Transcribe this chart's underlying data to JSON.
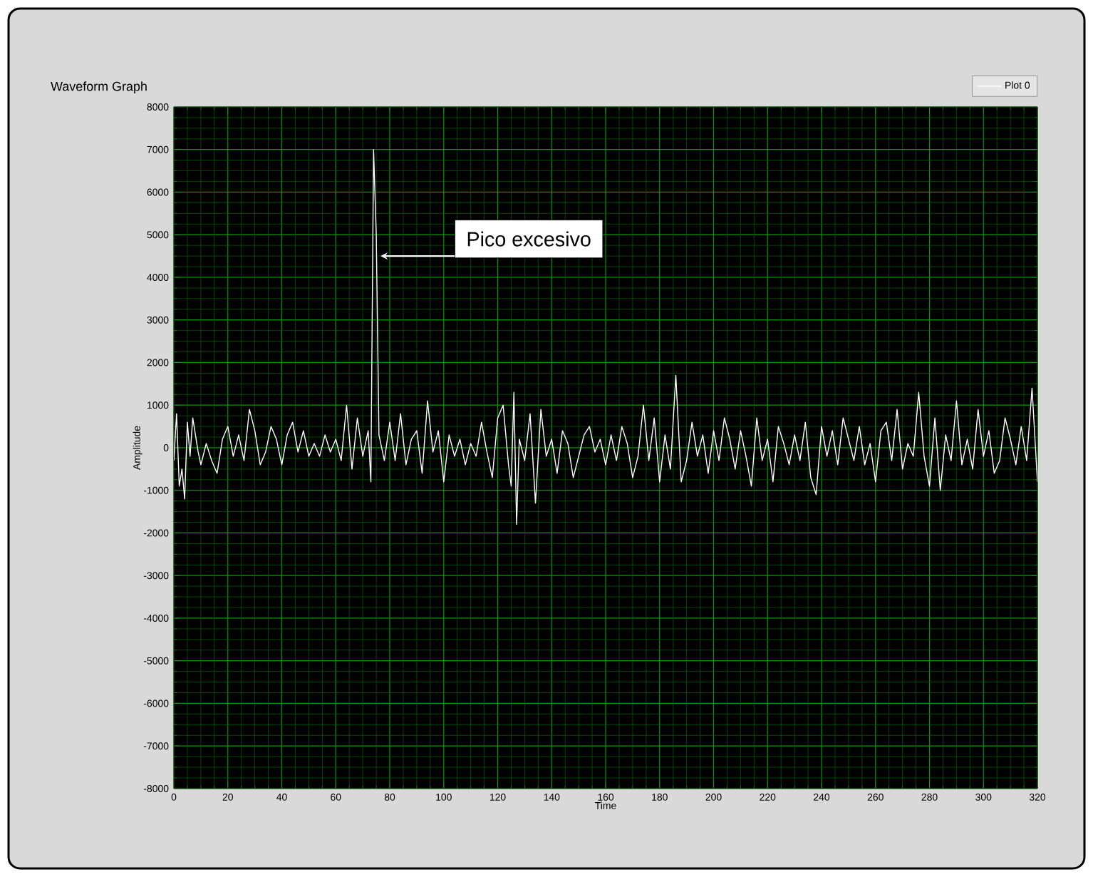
{
  "chart_data": {
    "type": "line",
    "title": "Waveform Graph",
    "xlabel": "Time",
    "ylabel": "Amplitude",
    "xlim": [
      0,
      320
    ],
    "ylim": [
      -8000,
      8000
    ],
    "xticks": [
      0,
      {
        "value": 5,
        "label": null
      },
      {
        "value": 10,
        "label": null
      },
      {
        "value": 15,
        "label": null
      },
      20,
      {
        "value": 25,
        "label": null
      },
      {
        "value": 30,
        "label": null
      },
      {
        "value": 35,
        "label": null
      },
      40,
      {
        "value": 45,
        "label": null
      },
      {
        "value": 50,
        "label": null
      },
      {
        "value": 55,
        "label": null
      },
      60,
      {
        "value": 65,
        "label": null
      },
      {
        "value": 70,
        "label": null
      },
      {
        "value": 75,
        "label": null
      },
      80,
      {
        "value": 85,
        "label": null
      },
      {
        "value": 90,
        "label": null
      },
      {
        "value": 95,
        "label": null
      },
      100,
      {
        "value": 105,
        "label": null
      },
      {
        "value": 110,
        "label": null
      },
      {
        "value": 115,
        "label": null
      },
      120,
      {
        "value": 125,
        "label": null
      },
      {
        "value": 130,
        "label": null
      },
      {
        "value": 135,
        "label": null
      },
      140,
      {
        "value": 145,
        "label": null
      },
      {
        "value": 150,
        "label": null
      },
      {
        "value": 155,
        "label": null
      },
      160,
      {
        "value": 165,
        "label": null
      },
      {
        "value": 170,
        "label": null
      },
      {
        "value": 175,
        "label": null
      },
      180,
      {
        "value": 185,
        "label": null
      },
      {
        "value": 190,
        "label": null
      },
      {
        "value": 195,
        "label": null
      },
      200,
      {
        "value": 205,
        "label": null
      },
      {
        "value": 210,
        "label": null
      },
      {
        "value": 215,
        "label": null
      },
      220,
      {
        "value": 225,
        "label": null
      },
      {
        "value": 230,
        "label": null
      },
      {
        "value": 235,
        "label": null
      },
      240,
      {
        "value": 245,
        "label": null
      },
      {
        "value": 250,
        "label": null
      },
      {
        "value": 255,
        "label": null
      },
      260,
      {
        "value": 265,
        "label": null
      },
      {
        "value": 270,
        "label": null
      },
      {
        "value": 275,
        "label": null
      },
      280,
      {
        "value": 285,
        "label": null
      },
      {
        "value": 290,
        "label": null
      },
      {
        "value": 295,
        "label": null
      },
      300,
      {
        "value": 305,
        "label": null
      },
      {
        "value": 310,
        "label": null
      },
      {
        "value": 315,
        "label": null
      },
      320
    ],
    "yticks": [
      -8000,
      {
        "value": -7750,
        "label": null
      },
      {
        "value": -7500,
        "label": null
      },
      {
        "value": -7250,
        "label": null
      },
      -7000,
      {
        "value": -6750,
        "label": null
      },
      {
        "value": -6500,
        "label": null
      },
      {
        "value": -6250,
        "label": null
      },
      -6000,
      {
        "value": -5750,
        "label": null
      },
      {
        "value": -5500,
        "label": null
      },
      {
        "value": -5250,
        "label": null
      },
      -5000,
      {
        "value": -4750,
        "label": null
      },
      {
        "value": -4500,
        "label": null
      },
      {
        "value": -4250,
        "label": null
      },
      -4000,
      {
        "value": -3750,
        "label": null
      },
      {
        "value": -3500,
        "label": null
      },
      {
        "value": -3250,
        "label": null
      },
      -3000,
      {
        "value": -2750,
        "label": null
      },
      {
        "value": -2500,
        "label": null
      },
      {
        "value": -2250,
        "label": null
      },
      -2000,
      {
        "value": -1750,
        "label": null
      },
      {
        "value": -1500,
        "label": null
      },
      {
        "value": -1250,
        "label": null
      },
      -1000,
      {
        "value": -750,
        "label": null
      },
      {
        "value": -500,
        "label": null
      },
      {
        "value": -250,
        "label": null
      },
      0,
      {
        "value": 250,
        "label": null
      },
      {
        "value": 500,
        "label": null
      },
      {
        "value": 750,
        "label": null
      },
      1000,
      {
        "value": 1250,
        "label": null
      },
      {
        "value": 1500,
        "label": null
      },
      {
        "value": 1750,
        "label": null
      },
      2000,
      {
        "value": 2250,
        "label": null
      },
      {
        "value": 2500,
        "label": null
      },
      {
        "value": 2750,
        "label": null
      },
      3000,
      {
        "value": 3250,
        "label": null
      },
      {
        "value": 3500,
        "label": null
      },
      {
        "value": 3750,
        "label": null
      },
      4000,
      {
        "value": 4250,
        "label": null
      },
      {
        "value": 4500,
        "label": null
      },
      {
        "value": 4750,
        "label": null
      },
      5000,
      {
        "value": 5250,
        "label": null
      },
      {
        "value": 5500,
        "label": null
      },
      {
        "value": 5750,
        "label": null
      },
      6000,
      {
        "value": 6250,
        "label": null
      },
      {
        "value": 6500,
        "label": null
      },
      {
        "value": 6750,
        "label": null
      },
      7000,
      {
        "value": 7250,
        "label": null
      },
      {
        "value": 7500,
        "label": null
      },
      {
        "value": 7750,
        "label": null
      },
      8000
    ],
    "grid": true,
    "legend": "top right",
    "annotations": [
      {
        "text": "Pico excesivo",
        "x": 75,
        "y": 4500
      }
    ],
    "series": [
      {
        "name": "Plot 0",
        "color": "#ffffff",
        "x": [
          0,
          1,
          2,
          3,
          4,
          5,
          6,
          7,
          8,
          9,
          10,
          12,
          14,
          16,
          18,
          20,
          22,
          24,
          26,
          28,
          30,
          32,
          34,
          36,
          38,
          40,
          42,
          44,
          46,
          48,
          50,
          52,
          54,
          56,
          58,
          60,
          62,
          64,
          66,
          68,
          70,
          72,
          73,
          74,
          75,
          76,
          78,
          80,
          82,
          84,
          86,
          88,
          90,
          92,
          94,
          96,
          98,
          100,
          102,
          104,
          106,
          108,
          110,
          112,
          114,
          116,
          118,
          120,
          122,
          124,
          125,
          126,
          127,
          128,
          130,
          132,
          134,
          136,
          138,
          140,
          142,
          144,
          146,
          148,
          150,
          152,
          154,
          156,
          158,
          160,
          162,
          164,
          166,
          168,
          170,
          172,
          174,
          176,
          178,
          180,
          182,
          184,
          186,
          188,
          190,
          192,
          194,
          196,
          198,
          200,
          202,
          204,
          206,
          208,
          210,
          212,
          214,
          216,
          218,
          220,
          222,
          224,
          226,
          228,
          230,
          232,
          234,
          236,
          238,
          240,
          242,
          244,
          246,
          248,
          250,
          252,
          254,
          256,
          258,
          260,
          262,
          264,
          266,
          268,
          270,
          272,
          274,
          276,
          278,
          280,
          282,
          284,
          286,
          288,
          290,
          292,
          294,
          296,
          298,
          300,
          302,
          304,
          306,
          308,
          310,
          312,
          314,
          316,
          318,
          320
        ],
        "values": [
          -300,
          800,
          -900,
          -500,
          -1200,
          600,
          -200,
          700,
          300,
          -100,
          -400,
          100,
          -300,
          -600,
          200,
          500,
          -200,
          300,
          -300,
          900,
          400,
          -400,
          -100,
          500,
          200,
          -400,
          300,
          600,
          -100,
          400,
          -200,
          100,
          -200,
          300,
          -100,
          200,
          -300,
          1000,
          -500,
          700,
          -200,
          400,
          -800,
          7000,
          5000,
          300,
          -300,
          600,
          -300,
          800,
          -400,
          200,
          400,
          -600,
          1100,
          -100,
          400,
          -800,
          300,
          -200,
          200,
          -400,
          100,
          -200,
          600,
          -100,
          -700,
          700,
          1000,
          -400,
          -900,
          1300,
          -1800,
          200,
          -300,
          800,
          -1300,
          900,
          -200,
          200,
          -600,
          400,
          100,
          -700,
          -200,
          300,
          500,
          -100,
          200,
          -400,
          300,
          -300,
          500,
          100,
          -700,
          -200,
          1000,
          -300,
          700,
          -800,
          300,
          -500,
          1700,
          -800,
          -300,
          600,
          -200,
          300,
          -600,
          400,
          -300,
          700,
          200,
          -500,
          400,
          -200,
          -900,
          700,
          -300,
          200,
          -800,
          500,
          100,
          -400,
          300,
          -300,
          600,
          -700,
          -1100,
          500,
          -200,
          400,
          -400,
          700,
          200,
          -300,
          500,
          -400,
          100,
          -800,
          400,
          600,
          -300,
          900,
          -500,
          100,
          -200,
          1300,
          -200,
          -900,
          700,
          -1000,
          300,
          -300,
          1100,
          -400,
          200,
          -500,
          900,
          -200,
          400,
          -600,
          -300,
          700,
          200,
          -400,
          500,
          -300,
          1400,
          -800
        ]
      }
    ]
  }
}
